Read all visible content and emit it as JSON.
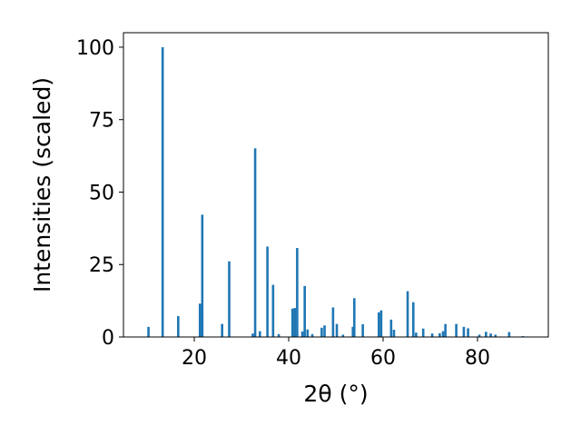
{
  "chart_data": {
    "type": "bar",
    "xlabel": "2θ (°)",
    "ylabel": "Intensities (scaled)",
    "xlim": [
      5,
      95
    ],
    "ylim": [
      0,
      105
    ],
    "xticks": [
      20,
      40,
      60,
      80
    ],
    "yticks": [
      0,
      25,
      50,
      75,
      100
    ],
    "bar_width": 0.5,
    "grid": false,
    "color": "#1f77b4",
    "series": [
      {
        "x": [
          10.3,
          13.3,
          16.6,
          21.2,
          21.7,
          25.9,
          27.4,
          32.4,
          32.9,
          33.9,
          35.5,
          36.7,
          37.9,
          40.8,
          41.3,
          41.8,
          42.9,
          43.4,
          44.0,
          45.0,
          47.0,
          47.6,
          49.4,
          50.2,
          51.5,
          53.6,
          53.9,
          55.7,
          59.1,
          59.6,
          61.7,
          62.3,
          65.2,
          66.4,
          67.0,
          68.5,
          70.4,
          72.0,
          72.7,
          73.2,
          75.5,
          77.1,
          78.0,
          80.4,
          81.8,
          82.8,
          83.8,
          86.7,
          89.6
        ],
        "values": [
          3.5,
          100,
          7.2,
          11.5,
          42.2,
          4.5,
          26.1,
          1.2,
          65.1,
          2.0,
          31.2,
          18.0,
          1.0,
          9.8,
          10.0,
          30.7,
          1.9,
          17.6,
          2.6,
          1.0,
          3.2,
          4.0,
          10.2,
          4.5,
          0.8,
          3.5,
          13.4,
          4.4,
          8.5,
          9.2,
          6.0,
          2.5,
          15.8,
          12.0,
          1.5,
          2.9,
          1.2,
          1.3,
          2.0,
          4.5,
          4.5,
          3.5,
          3.0,
          0.8,
          1.8,
          1.2,
          0.8,
          1.7,
          0.3
        ]
      }
    ]
  }
}
